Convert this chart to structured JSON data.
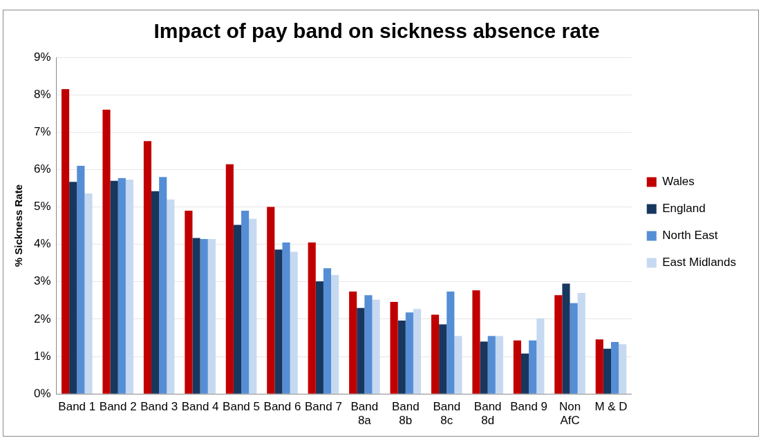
{
  "chart_data": {
    "type": "bar",
    "title": "Impact of pay band on sickness absence rate",
    "ylabel": "% Sickness Rate",
    "categories": [
      "Band 1",
      "Band 2",
      "Band 3",
      "Band 4",
      "Band 5",
      "Band 6",
      "Band 7",
      "Band 8a",
      "Band 8b",
      "Band 8c",
      "Band 8d",
      "Band 9",
      "Non AfC",
      "M & D"
    ],
    "series": [
      {
        "name": "Wales",
        "color": "#c00000",
        "values": [
          8.15,
          7.6,
          6.76,
          4.9,
          6.14,
          5.0,
          4.05,
          2.74,
          2.46,
          2.12,
          2.77,
          1.43,
          2.64,
          1.46
        ]
      },
      {
        "name": "England",
        "color": "#17375e",
        "values": [
          5.67,
          5.7,
          5.42,
          4.17,
          4.52,
          3.86,
          3.01,
          2.3,
          1.96,
          1.86,
          1.4,
          1.08,
          2.95,
          1.21
        ]
      },
      {
        "name": "North East",
        "color": "#558ed5",
        "values": [
          6.1,
          5.77,
          5.8,
          4.14,
          4.9,
          4.05,
          3.36,
          2.64,
          2.18,
          2.74,
          1.55,
          1.43,
          2.43,
          1.39
        ]
      },
      {
        "name": "East Midlands",
        "color": "#c6d9f1",
        "values": [
          5.36,
          5.73,
          5.2,
          4.14,
          4.68,
          3.8,
          3.18,
          2.52,
          2.27,
          1.55,
          1.55,
          2.02,
          2.7,
          1.33
        ]
      }
    ],
    "ylim": [
      0,
      9
    ],
    "yticks": [
      {
        "value": 0,
        "label": "0%"
      },
      {
        "value": 1,
        "label": "1%"
      },
      {
        "value": 2,
        "label": "2%"
      },
      {
        "value": 3,
        "label": "3%"
      },
      {
        "value": 4,
        "label": "4%"
      },
      {
        "value": 5,
        "label": "5%"
      },
      {
        "value": 6,
        "label": "6%"
      },
      {
        "value": 7,
        "label": "7%"
      },
      {
        "value": 8,
        "label": "8%"
      },
      {
        "value": 9,
        "label": "9%"
      }
    ],
    "grid": "y",
    "legend": "right"
  }
}
